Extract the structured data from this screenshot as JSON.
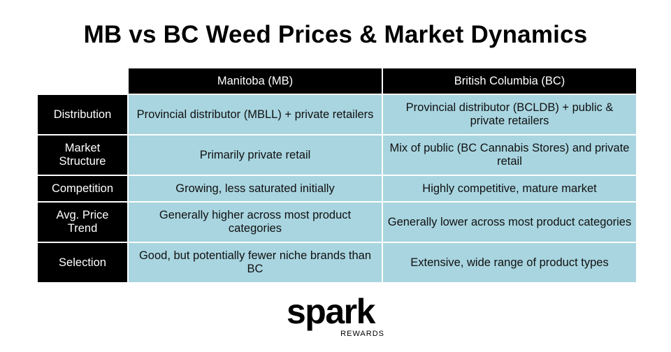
{
  "header": {
    "title": "MB vs BC Weed Prices & Market Dynamics"
  },
  "table": {
    "columns": [
      "Manitoba (MB)",
      "British Columbia (BC)"
    ],
    "rows": [
      {
        "label": "Distribution",
        "cells": [
          "Provincial distributor (MBLL) + private retailers",
          "Provincial distributor (BCLDB) + public & private retailers"
        ]
      },
      {
        "label": "Market Structure",
        "cells": [
          "Primarily private retail",
          "Mix of public (BC Cannabis Stores) and private retail"
        ]
      },
      {
        "label": "Competition",
        "cells": [
          "Growing, less saturated initially",
          "Highly competitive, mature market"
        ]
      },
      {
        "label": "Avg. Price Trend",
        "cells": [
          "Generally higher across most product categories",
          "Generally lower across most product categories"
        ]
      },
      {
        "label": "Selection",
        "cells": [
          "Good, but potentially fewer niche brands than BC",
          "Extensive, wide range of product types"
        ]
      }
    ]
  },
  "logo": {
    "name": "spark",
    "tagline": "REWARDS"
  }
}
